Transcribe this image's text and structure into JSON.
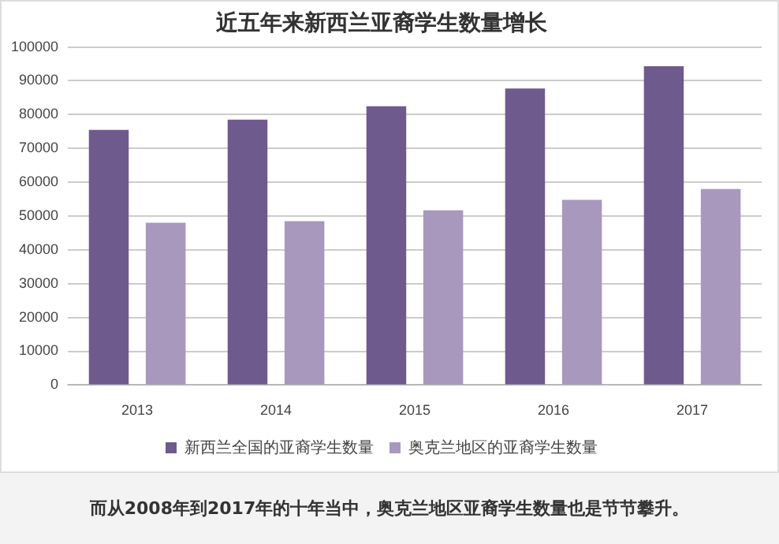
{
  "chart_data": {
    "type": "bar",
    "title": "近五年来新西兰亚裔学生数量增长",
    "categories": [
      "2013",
      "2014",
      "2015",
      "2016",
      "2017"
    ],
    "series": [
      {
        "name": "新西兰全国的亚裔学生数量",
        "color": "#6f5a8e",
        "values": [
          75500,
          78500,
          82500,
          87700,
          94300
        ]
      },
      {
        "name": "奥克兰地区的亚裔学生数量",
        "color": "#a898bd",
        "values": [
          48000,
          48500,
          51700,
          54800,
          58000
        ]
      }
    ],
    "ylim": [
      0,
      100000
    ],
    "yticks": [
      0,
      10000,
      20000,
      30000,
      40000,
      50000,
      60000,
      70000,
      80000,
      90000,
      100000
    ],
    "grid": "y",
    "legend": "bottom",
    "annotations": [
      "而从2008年到2017年的十年当中，奥克兰地区亚裔学生数量也是节节攀升。"
    ]
  }
}
